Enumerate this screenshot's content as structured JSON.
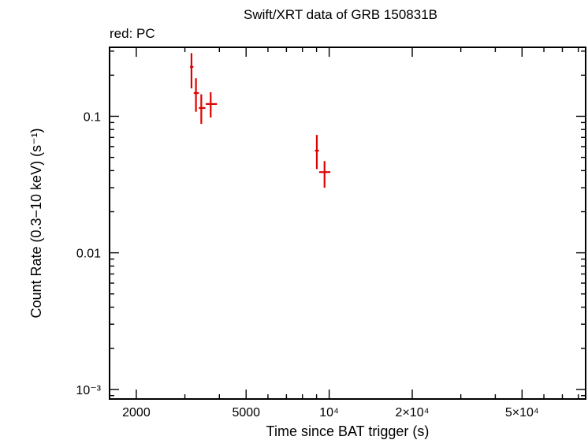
{
  "chart_data": {
    "type": "scatter",
    "title": "Swift/XRT data of GRB 150831B",
    "subtitle": "red: PC",
    "xlabel": "Time since BAT trigger (s)",
    "ylabel": "Count Rate (0.3−10 keV) (s⁻¹)",
    "x_scale": "log",
    "y_scale": "log",
    "xlim": [
      1600,
      85000
    ],
    "ylim": [
      0.00085,
      0.32
    ],
    "x_ticks": [
      {
        "value": 2000,
        "label": "2000"
      },
      {
        "value": 5000,
        "label": "5000"
      },
      {
        "value": 10000,
        "label": "10⁴"
      },
      {
        "value": 20000,
        "label": "2×10⁴"
      },
      {
        "value": 50000,
        "label": "5×10⁴"
      }
    ],
    "y_ticks": [
      {
        "value": 0.1,
        "label": "0.1"
      },
      {
        "value": 0.01,
        "label": "0.01"
      },
      {
        "value": 0.001,
        "label": "10⁻³"
      }
    ],
    "color": "#e00000",
    "points": [
      {
        "x": 3170,
        "xerr": [
          3130,
          3220
        ],
        "y": 0.23,
        "yerr": [
          0.16,
          0.29
        ]
      },
      {
        "x": 3290,
        "xerr": [
          3230,
          3370
        ],
        "y": 0.148,
        "yerr": [
          0.108,
          0.19
        ]
      },
      {
        "x": 3440,
        "xerr": [
          3370,
          3560
        ],
        "y": 0.115,
        "yerr": [
          0.088,
          0.145
        ]
      },
      {
        "x": 3720,
        "xerr": [
          3570,
          3920
        ],
        "y": 0.123,
        "yerr": [
          0.098,
          0.15
        ]
      },
      {
        "x": 9020,
        "xerr": [
          8880,
          9180
        ],
        "y": 0.056,
        "yerr": [
          0.041,
          0.073
        ]
      },
      {
        "x": 9620,
        "xerr": [
          9200,
          10100
        ],
        "y": 0.039,
        "yerr": [
          0.03,
          0.047
        ]
      }
    ]
  }
}
